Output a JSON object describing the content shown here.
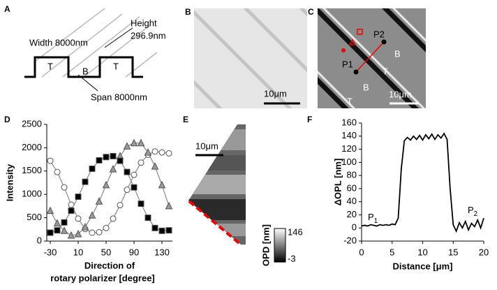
{
  "panel_a": {
    "letter": "A",
    "width": "Width 8000nm",
    "height": "Height",
    "height_value": "296.9nm",
    "span": "Span 8000nm",
    "top1": "T",
    "top2": "T",
    "bottom": "B"
  },
  "panel_b": {
    "letter": "B",
    "scale": "10μm"
  },
  "panel_c": {
    "letter": "C",
    "scale": "10μm",
    "p1": "P1",
    "p2": "P2",
    "regions": [
      "B",
      "T",
      "B",
      "T"
    ]
  },
  "panel_e": {
    "letter": "E",
    "scale": "10μm",
    "colorbar_label": "OPD [nm]",
    "colorbar_max": "146",
    "colorbar_min": "-3"
  },
  "panel_d_letter": "D",
  "panel_f_letter": "F",
  "chart_data": [
    {
      "type": "scatter-line",
      "ylabel": "Intensity",
      "xlabel": [
        "Direction of",
        "rotary polarizer [degree]"
      ],
      "x": [
        -30,
        -20,
        -10,
        0,
        10,
        20,
        30,
        40,
        50,
        60,
        70,
        80,
        90,
        100,
        110,
        120,
        130,
        140
      ],
      "xlim": [
        -35,
        145
      ],
      "xticks": [
        -30,
        10,
        50,
        90,
        130
      ],
      "ylim": [
        0,
        2500
      ],
      "yticks": [
        0,
        500,
        1000,
        1500,
        2000,
        2500
      ],
      "line_color": "#888888",
      "series": [
        {
          "marker": "circle",
          "color": "#ffffff",
          "values": [
            1720,
            1480,
            1150,
            780,
            480,
            260,
            180,
            190,
            280,
            480,
            770,
            1100,
            1420,
            1680,
            1850,
            1920,
            1900,
            1880
          ]
        },
        {
          "marker": "triangle",
          "color": "#999999",
          "values": [
            650,
            380,
            220,
            120,
            150,
            300,
            550,
            850,
            1200,
            1540,
            1820,
            2030,
            2100,
            2100,
            1900,
            1600,
            1200,
            750
          ]
        },
        {
          "marker": "square",
          "color": "#000000",
          "values": [
            180,
            230,
            400,
            650,
            950,
            1270,
            1550,
            1730,
            1800,
            1820,
            1720,
            1480,
            1150,
            800,
            500,
            280,
            220,
            230
          ]
        }
      ]
    },
    {
      "type": "line",
      "ylabel": "ΔOPL [nm]",
      "xlabel": "Distance [μm]",
      "x": [
        0,
        0.5,
        1,
        1.5,
        2,
        2.5,
        3,
        3.5,
        4,
        4.5,
        5,
        5.5,
        6,
        6.5,
        7,
        7.5,
        8,
        8.5,
        9,
        9.5,
        10,
        10.5,
        11,
        11.5,
        12,
        12.5,
        13,
        13.5,
        14,
        14.5,
        15,
        15.5,
        16,
        16.5,
        17,
        17.5,
        18,
        18.5,
        19,
        19.5,
        20
      ],
      "values": [
        3,
        4,
        3,
        5,
        4,
        3,
        5,
        4,
        5,
        4,
        6,
        5,
        15,
        90,
        133,
        138,
        134,
        140,
        135,
        141,
        134,
        142,
        136,
        143,
        135,
        142,
        137,
        144,
        135,
        60,
        5,
        -5,
        8,
        0,
        10,
        -3,
        7,
        2,
        12,
        0,
        15
      ],
      "color": "#000000",
      "xlim": [
        0,
        20
      ],
      "xticks": [
        0,
        5,
        10,
        15,
        20
      ],
      "ylim": [
        -20,
        160
      ],
      "yticks": [
        -20,
        0,
        20,
        40,
        60,
        80,
        100,
        120,
        140,
        160
      ],
      "annotations": [
        {
          "text": "P",
          "sub": "1"
        },
        {
          "text": "P",
          "sub": "2"
        }
      ]
    }
  ]
}
